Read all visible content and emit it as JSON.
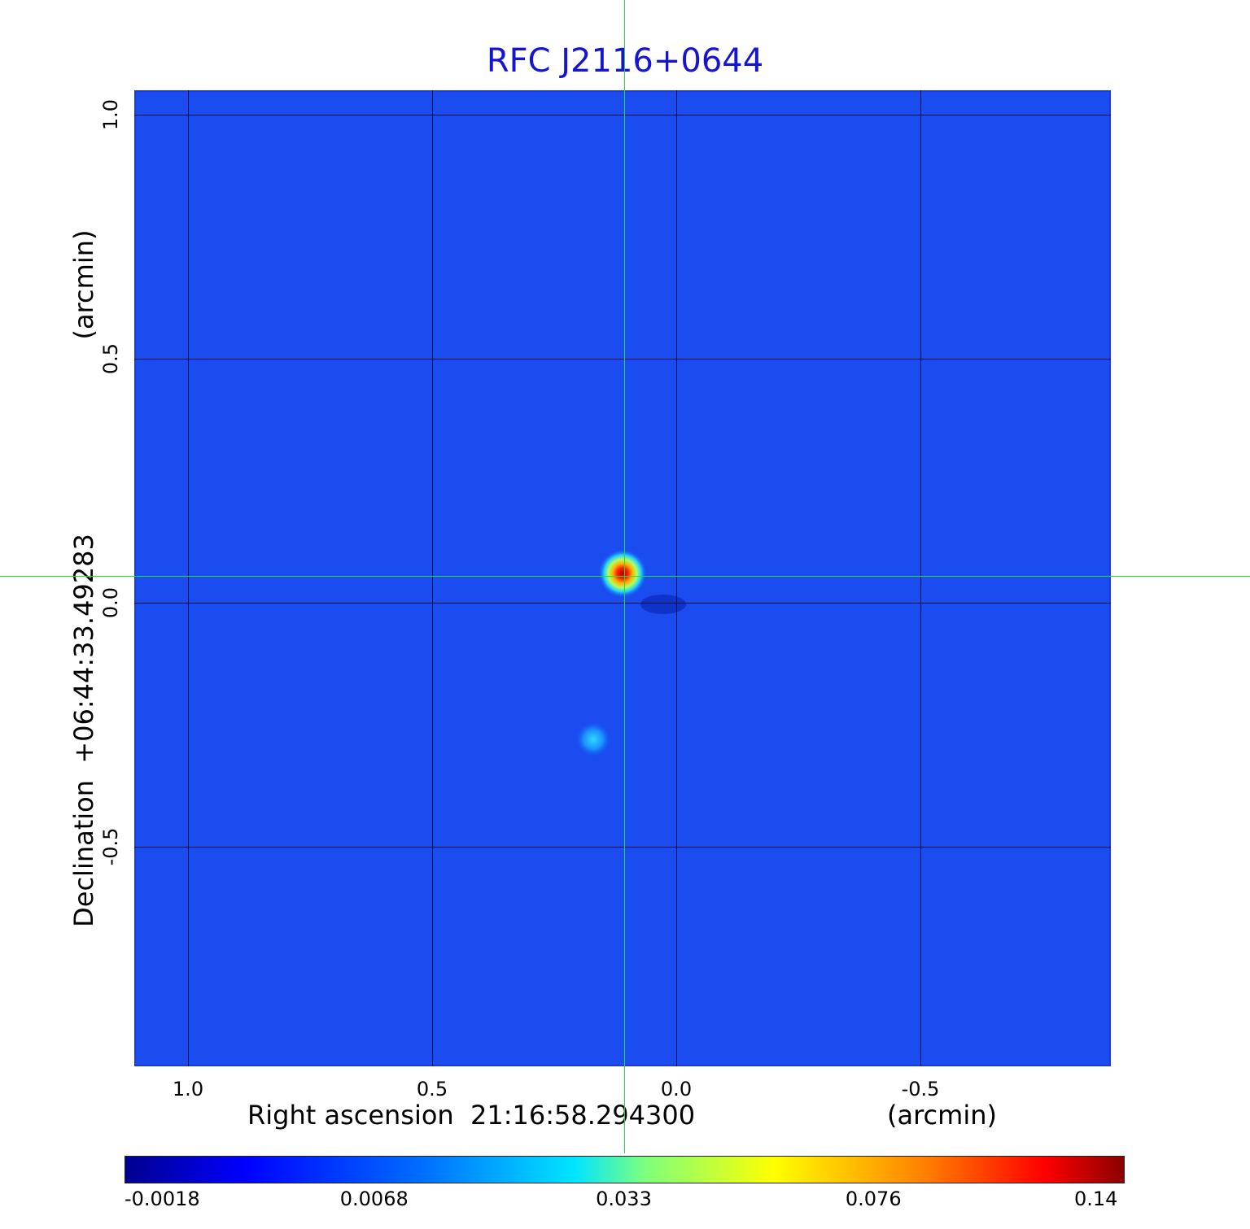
{
  "chart_data": {
    "type": "heatmap",
    "title": "RFC J2116+0644",
    "xlabel": "Right ascension  21:16:58.294300",
    "xunit": "(arcmin)",
    "ylabel": "Declination  +06:44:33.49283",
    "yunit": "(arcmin)",
    "x_ticks": [
      "1.0",
      "0.5",
      "0.0",
      "-0.5"
    ],
    "y_ticks": [
      "1.0",
      "0.5",
      "0.0",
      "-0.5"
    ],
    "x_tick_values": [
      1.0,
      0.5,
      0.0,
      -0.5
    ],
    "y_tick_values": [
      1.0,
      0.5,
      0.0,
      -0.5
    ],
    "xlim": [
      1.11,
      -0.89
    ],
    "ylim": [
      -0.95,
      1.05
    ],
    "grid": true,
    "colormap": "jet",
    "colorbar_ticks": [
      "-0.0018",
      "0.0068",
      "0.033",
      "0.076",
      "0.14"
    ],
    "colorbar_range": [
      -0.0018,
      0.14
    ],
    "sources": [
      {
        "x": 0.11,
        "y": 0.06,
        "peak": 0.14
      },
      {
        "x": 0.17,
        "y": -0.28,
        "peak": 0.012
      }
    ],
    "crosshair": {
      "x": 0.11,
      "y": 0.06,
      "color": "#22dd33"
    }
  }
}
